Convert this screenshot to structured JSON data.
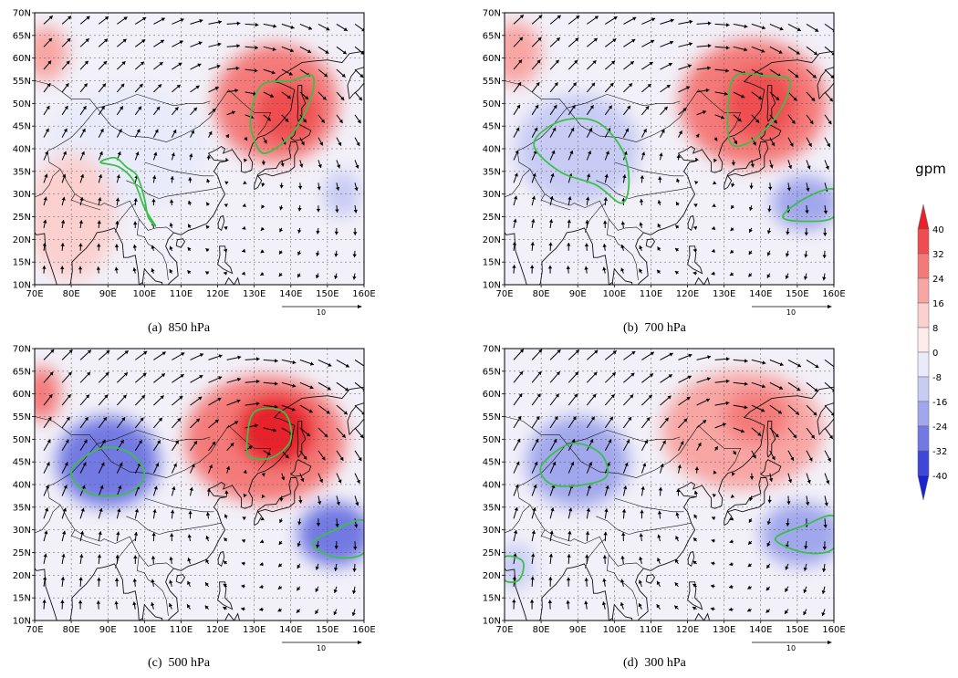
{
  "colorbar": {
    "unit": "gpm",
    "levels": [
      "40",
      "32",
      "24",
      "16",
      "8",
      "0",
      "-8",
      "-16",
      "-24",
      "-32",
      "-40"
    ],
    "colors": [
      "#e8212a",
      "#ef4d4f",
      "#f47a79",
      "#f8a6a4",
      "#fbd0cf",
      "#fdeceb",
      "#e9ebfa",
      "#c8ccf4",
      "#a1a7ec",
      "#7279e2",
      "#3f47d9",
      "#1a22d2"
    ]
  },
  "axes": {
    "x_ticks": [
      "70E",
      "80E",
      "90E",
      "100E",
      "110E",
      "120E",
      "130E",
      "140E",
      "150E",
      "160E"
    ],
    "y_ticks": [
      "70N",
      "65N",
      "60N",
      "55N",
      "50N",
      "45N",
      "40N",
      "35N",
      "30N",
      "25N",
      "20N",
      "15N",
      "10N"
    ],
    "lon_range": [
      70,
      160
    ],
    "lat_range": [
      10,
      70
    ]
  },
  "reference_vector": "10",
  "panels": [
    {
      "caption": "(a)  850 hPa",
      "blobs": [
        {
          "lon": 136,
          "lat": 50,
          "rlon": 17,
          "rlat": 13,
          "value": 24
        },
        {
          "lon": 139,
          "lat": 48,
          "rlon": 9,
          "rlat": 7,
          "value": 32
        },
        {
          "lon": 73,
          "lat": 61,
          "rlon": 6,
          "rlat": 6,
          "value": 16
        },
        {
          "lon": 95,
          "lat": 40,
          "rlon": 22,
          "rlat": 14,
          "value": -8
        },
        {
          "lon": 154,
          "lat": 30,
          "rlon": 5,
          "rlat": 5,
          "value": -16
        },
        {
          "lon": 80,
          "lat": 25,
          "rlon": 12,
          "rlat": 14,
          "value": 8
        }
      ],
      "contours": [
        [
          [
            129,
            47
          ],
          [
            132,
            54
          ],
          [
            140,
            55
          ],
          [
            146,
            56
          ],
          [
            145,
            50
          ],
          [
            140,
            43
          ],
          [
            133,
            39
          ],
          [
            130,
            42
          ]
        ],
        [
          [
            88,
            37
          ],
          [
            92,
            38
          ],
          [
            95,
            36
          ],
          [
            98,
            34
          ],
          [
            100,
            29
          ],
          [
            101,
            25
          ],
          [
            103,
            23
          ],
          [
            100,
            27
          ],
          [
            97,
            33
          ],
          [
            93,
            36
          ]
        ]
      ],
      "wind": {
        "center_lon": 125,
        "center_lat": 45,
        "strength": 0.7
      }
    },
    {
      "caption": "(b)  700 hPa",
      "blobs": [
        {
          "lon": 138,
          "lat": 50,
          "rlon": 20,
          "rlat": 14,
          "value": 24
        },
        {
          "lon": 140,
          "lat": 50,
          "rlon": 10,
          "rlat": 8,
          "value": 32
        },
        {
          "lon": 73,
          "lat": 61,
          "rlon": 7,
          "rlat": 7,
          "value": 16
        },
        {
          "lon": 90,
          "lat": 40,
          "rlon": 17,
          "rlat": 12,
          "value": -16
        },
        {
          "lon": 152,
          "lat": 28,
          "rlon": 9,
          "rlat": 6,
          "value": -24
        }
      ],
      "contours": [
        [
          [
            131,
            48
          ],
          [
            133,
            56
          ],
          [
            142,
            56
          ],
          [
            148,
            55
          ],
          [
            145,
            48
          ],
          [
            138,
            42
          ],
          [
            132,
            41
          ]
        ],
        [
          [
            78,
            41
          ],
          [
            85,
            46
          ],
          [
            95,
            46
          ],
          [
            102,
            40
          ],
          [
            104,
            33
          ],
          [
            102,
            28
          ],
          [
            95,
            32
          ],
          [
            85,
            35
          ]
        ],
        [
          [
            146,
            25
          ],
          [
            152,
            29
          ],
          [
            160,
            31
          ],
          [
            160,
            25
          ],
          [
            152,
            24
          ]
        ]
      ],
      "wind": {
        "center_lon": 125,
        "center_lat": 45,
        "strength": 0.85
      }
    },
    {
      "caption": "(c)  500 hPa",
      "blobs": [
        {
          "lon": 133,
          "lat": 50,
          "rlon": 22,
          "rlat": 14,
          "value": 24
        },
        {
          "lon": 136,
          "lat": 52,
          "rlon": 11,
          "rlat": 8,
          "value": 40
        },
        {
          "lon": 72,
          "lat": 60,
          "rlon": 5,
          "rlat": 6,
          "value": 24
        },
        {
          "lon": 90,
          "lat": 45,
          "rlon": 14,
          "rlat": 10,
          "value": -32
        },
        {
          "lon": 152,
          "lat": 29,
          "rlon": 10,
          "rlat": 7,
          "value": -32
        }
      ],
      "contours": [
        [
          [
            128,
            49
          ],
          [
            130,
            56
          ],
          [
            138,
            56
          ],
          [
            140,
            50
          ],
          [
            135,
            46
          ],
          [
            129,
            46
          ]
        ],
        [
          [
            80,
            43
          ],
          [
            88,
            48
          ],
          [
            96,
            47
          ],
          [
            100,
            42
          ],
          [
            95,
            38
          ],
          [
            85,
            38
          ]
        ],
        [
          [
            146,
            27
          ],
          [
            152,
            30
          ],
          [
            160,
            32
          ],
          [
            160,
            25
          ],
          [
            152,
            24
          ]
        ]
      ],
      "wind": {
        "center_lon": 130,
        "center_lat": 47,
        "strength": 1.0
      }
    },
    {
      "caption": "(d)  300 hPa",
      "blobs": [
        {
          "lon": 135,
          "lat": 52,
          "rlon": 22,
          "rlat": 13,
          "value": 16
        },
        {
          "lon": 139,
          "lat": 55,
          "rlon": 9,
          "rlat": 6,
          "value": 24
        },
        {
          "lon": 90,
          "lat": 45,
          "rlon": 14,
          "rlat": 10,
          "value": -24
        },
        {
          "lon": 151,
          "lat": 29,
          "rlon": 11,
          "rlat": 7,
          "value": -24
        },
        {
          "lon": 73,
          "lat": 22,
          "rlon": 5,
          "rlat": 5,
          "value": -16
        }
      ],
      "contours": [
        [
          [
            80,
            44
          ],
          [
            88,
            49
          ],
          [
            96,
            47
          ],
          [
            98,
            42
          ],
          [
            92,
            40
          ],
          [
            83,
            40
          ]
        ],
        [
          [
            144,
            28
          ],
          [
            152,
            31
          ],
          [
            160,
            33
          ],
          [
            160,
            26
          ],
          [
            152,
            25
          ]
        ],
        [
          [
            70,
            24
          ],
          [
            75,
            23
          ],
          [
            74,
            19
          ],
          [
            70,
            19
          ]
        ]
      ],
      "wind": {
        "center_lon": 130,
        "center_lat": 50,
        "strength": 1.1
      }
    }
  ]
}
